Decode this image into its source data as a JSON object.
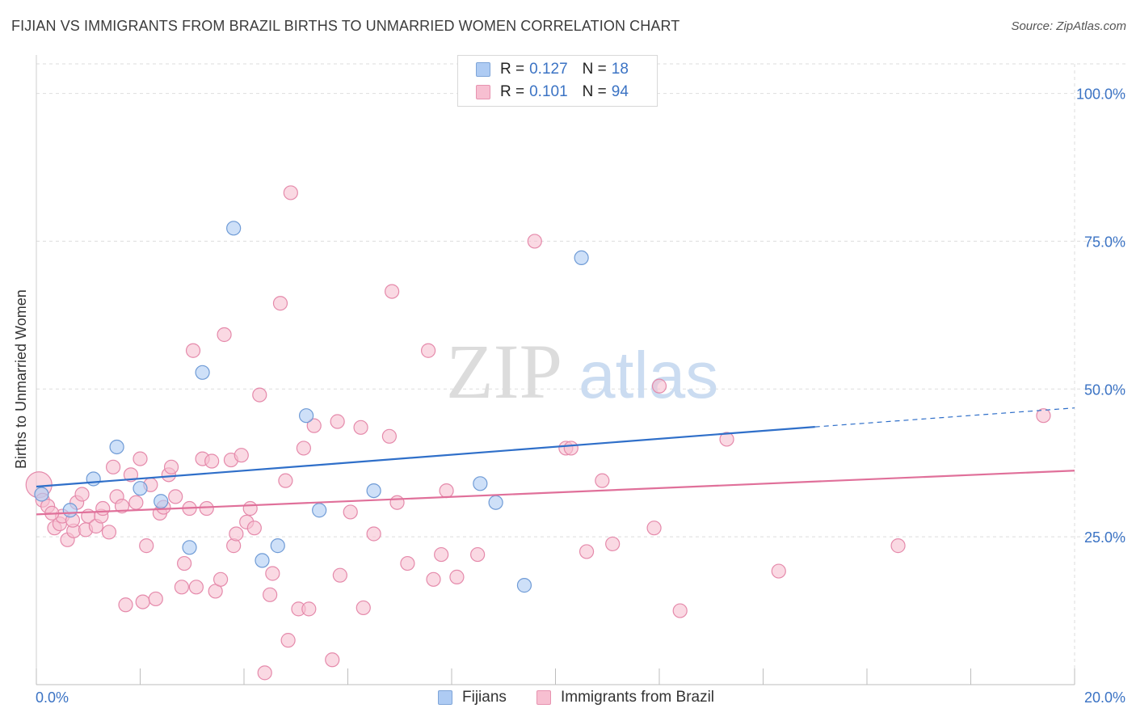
{
  "header": {
    "title": "FIJIAN VS IMMIGRANTS FROM BRAZIL BIRTHS TO UNMARRIED WOMEN CORRELATION CHART",
    "source": "Source: ZipAtlas.com"
  },
  "watermark": {
    "part1": "ZIP",
    "part2": "atlas"
  },
  "legend_top": {
    "rows": [
      {
        "r_label": "R = ",
        "r_value": "0.127",
        "n_label": "N = ",
        "n_value": "18",
        "color": "#aecbf3",
        "border": "#7ea5d8"
      },
      {
        "r_label": "R = ",
        "r_value": "0.101",
        "n_label": "N = ",
        "n_value": "94",
        "color": "#f7bfd1",
        "border": "#e793b0"
      }
    ]
  },
  "legend_bottom": {
    "items": [
      {
        "label": "Fijians",
        "color": "#aecbf3",
        "border": "#7ea5d8"
      },
      {
        "label": "Immigrants from Brazil",
        "color": "#f7bfd1",
        "border": "#e793b0"
      }
    ]
  },
  "chart_data": {
    "type": "scatter",
    "title": "FIJIAN VS IMMIGRANTS FROM BRAZIL BIRTHS TO UNMARRIED WOMEN CORRELATION CHART",
    "xlabel": "",
    "ylabel": "Births to Unmarried Women",
    "xlim": [
      0,
      20
    ],
    "ylim": [
      0,
      105
    ],
    "x_tick_labels": [
      "0.0%",
      "20.0%"
    ],
    "y_ticks": [
      25,
      50,
      75,
      100
    ],
    "y_tick_labels": [
      "25.0%",
      "50.0%",
      "75.0%",
      "100.0%"
    ],
    "grid": true,
    "colors": {
      "fijians_fill": "#aecbf3",
      "fijians_stroke": "#6f9bd6",
      "fijians_line": "#2f6fc9",
      "brazil_fill": "#f7bfd1",
      "brazil_stroke": "#e58aab",
      "brazil_line": "#e0709a",
      "tick_label": "#3b73c4",
      "grid": "#dddddd"
    },
    "series": [
      {
        "name": "Fijians",
        "points": [
          [
            0.1,
            32.2
          ],
          [
            0.65,
            29.5
          ],
          [
            1.1,
            34.8
          ],
          [
            1.55,
            40.2
          ],
          [
            2.0,
            33.2
          ],
          [
            2.4,
            31.0
          ],
          [
            2.95,
            23.2
          ],
          [
            3.2,
            52.8
          ],
          [
            3.8,
            77.2
          ],
          [
            4.35,
            21.0
          ],
          [
            4.65,
            23.5
          ],
          [
            5.2,
            45.5
          ],
          [
            5.45,
            29.5
          ],
          [
            6.5,
            32.8
          ],
          [
            8.55,
            34.0
          ],
          [
            8.85,
            30.8
          ],
          [
            9.4,
            16.8
          ],
          [
            10.5,
            72.2
          ]
        ],
        "trend": {
          "x0": 0.0,
          "y0": 33.5,
          "x1": 15.0,
          "y1": 43.6,
          "x_dash_end": 20.0,
          "y_dash_end": 46.8
        }
      },
      {
        "name": "Immigrants from Brazil",
        "points": [
          [
            0.05,
            33.8
          ],
          [
            0.12,
            31.2
          ],
          [
            0.22,
            30.2
          ],
          [
            0.35,
            26.5
          ],
          [
            0.45,
            27.2
          ],
          [
            0.5,
            28.5
          ],
          [
            0.6,
            24.5
          ],
          [
            0.72,
            26.0
          ],
          [
            0.78,
            30.8
          ],
          [
            0.88,
            32.2
          ],
          [
            0.95,
            26.2
          ],
          [
            1.0,
            28.5
          ],
          [
            1.15,
            26.8
          ],
          [
            1.25,
            28.5
          ],
          [
            1.28,
            29.8
          ],
          [
            1.4,
            25.8
          ],
          [
            1.48,
            36.8
          ],
          [
            1.55,
            31.8
          ],
          [
            1.65,
            30.2
          ],
          [
            1.72,
            13.5
          ],
          [
            1.82,
            35.5
          ],
          [
            1.92,
            30.8
          ],
          [
            2.0,
            38.2
          ],
          [
            2.05,
            14.0
          ],
          [
            2.12,
            23.5
          ],
          [
            2.2,
            33.8
          ],
          [
            2.3,
            14.5
          ],
          [
            2.38,
            29.0
          ],
          [
            2.45,
            30.0
          ],
          [
            2.55,
            35.5
          ],
          [
            2.6,
            36.8
          ],
          [
            2.68,
            31.8
          ],
          [
            2.8,
            16.5
          ],
          [
            2.85,
            20.5
          ],
          [
            2.95,
            29.8
          ],
          [
            3.02,
            56.5
          ],
          [
            3.08,
            16.5
          ],
          [
            3.2,
            38.2
          ],
          [
            3.28,
            29.8
          ],
          [
            3.38,
            37.8
          ],
          [
            3.45,
            15.8
          ],
          [
            3.55,
            17.8
          ],
          [
            3.62,
            59.2
          ],
          [
            3.75,
            38.0
          ],
          [
            3.8,
            23.5
          ],
          [
            3.85,
            25.5
          ],
          [
            3.95,
            38.8
          ],
          [
            4.05,
            27.5
          ],
          [
            4.12,
            29.8
          ],
          [
            4.2,
            26.5
          ],
          [
            4.3,
            49.0
          ],
          [
            4.4,
            2.0
          ],
          [
            4.5,
            15.2
          ],
          [
            4.55,
            18.8
          ],
          [
            4.7,
            64.5
          ],
          [
            4.8,
            34.5
          ],
          [
            4.85,
            7.5
          ],
          [
            4.9,
            83.2
          ],
          [
            5.05,
            12.8
          ],
          [
            5.15,
            40.0
          ],
          [
            5.25,
            12.8
          ],
          [
            5.35,
            43.8
          ],
          [
            5.7,
            4.2
          ],
          [
            5.8,
            44.5
          ],
          [
            5.85,
            18.5
          ],
          [
            6.05,
            29.2
          ],
          [
            6.25,
            43.5
          ],
          [
            6.3,
            13.0
          ],
          [
            6.5,
            25.5
          ],
          [
            6.8,
            42.0
          ],
          [
            6.85,
            66.5
          ],
          [
            6.95,
            30.8
          ],
          [
            7.15,
            20.5
          ],
          [
            7.55,
            56.5
          ],
          [
            7.65,
            17.8
          ],
          [
            7.8,
            22.0
          ],
          [
            7.9,
            32.8
          ],
          [
            8.1,
            18.2
          ],
          [
            8.5,
            22.0
          ],
          [
            9.6,
            75.0
          ],
          [
            10.2,
            40.0
          ],
          [
            10.3,
            40.0
          ],
          [
            10.6,
            22.5
          ],
          [
            10.9,
            34.5
          ],
          [
            11.1,
            23.8
          ],
          [
            11.9,
            26.5
          ],
          [
            12.0,
            50.5
          ],
          [
            12.4,
            12.5
          ],
          [
            13.3,
            41.5
          ],
          [
            14.3,
            19.2
          ],
          [
            16.6,
            23.5
          ],
          [
            19.4,
            45.5
          ],
          [
            0.3,
            29.0
          ],
          [
            0.7,
            27.8
          ]
        ],
        "trend": {
          "x0": 0.0,
          "y0": 28.8,
          "x1": 20.0,
          "y1": 36.2
        }
      }
    ]
  }
}
